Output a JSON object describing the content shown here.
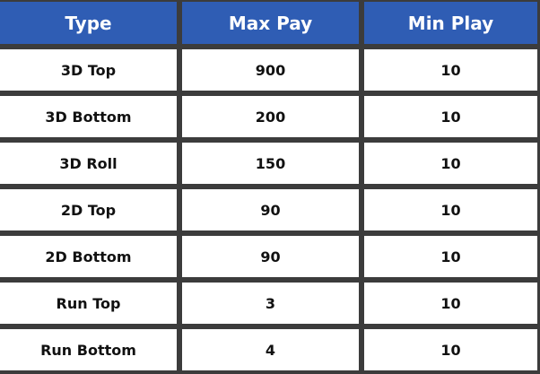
{
  "header": {
    "accent": "#2f5db4",
    "columns": [
      "Type",
      "Max Pay",
      "Min Play"
    ]
  },
  "rows": [
    [
      "3D Top",
      "900",
      "10"
    ],
    [
      "3D Bottom",
      "200",
      "10"
    ],
    [
      "3D Roll",
      "150",
      "10"
    ],
    [
      "2D Top",
      "90",
      "10"
    ],
    [
      "2D Bottom",
      "90",
      "10"
    ],
    [
      "Run Top",
      "3",
      "10"
    ],
    [
      "Run Bottom",
      "4",
      "10"
    ]
  ]
}
